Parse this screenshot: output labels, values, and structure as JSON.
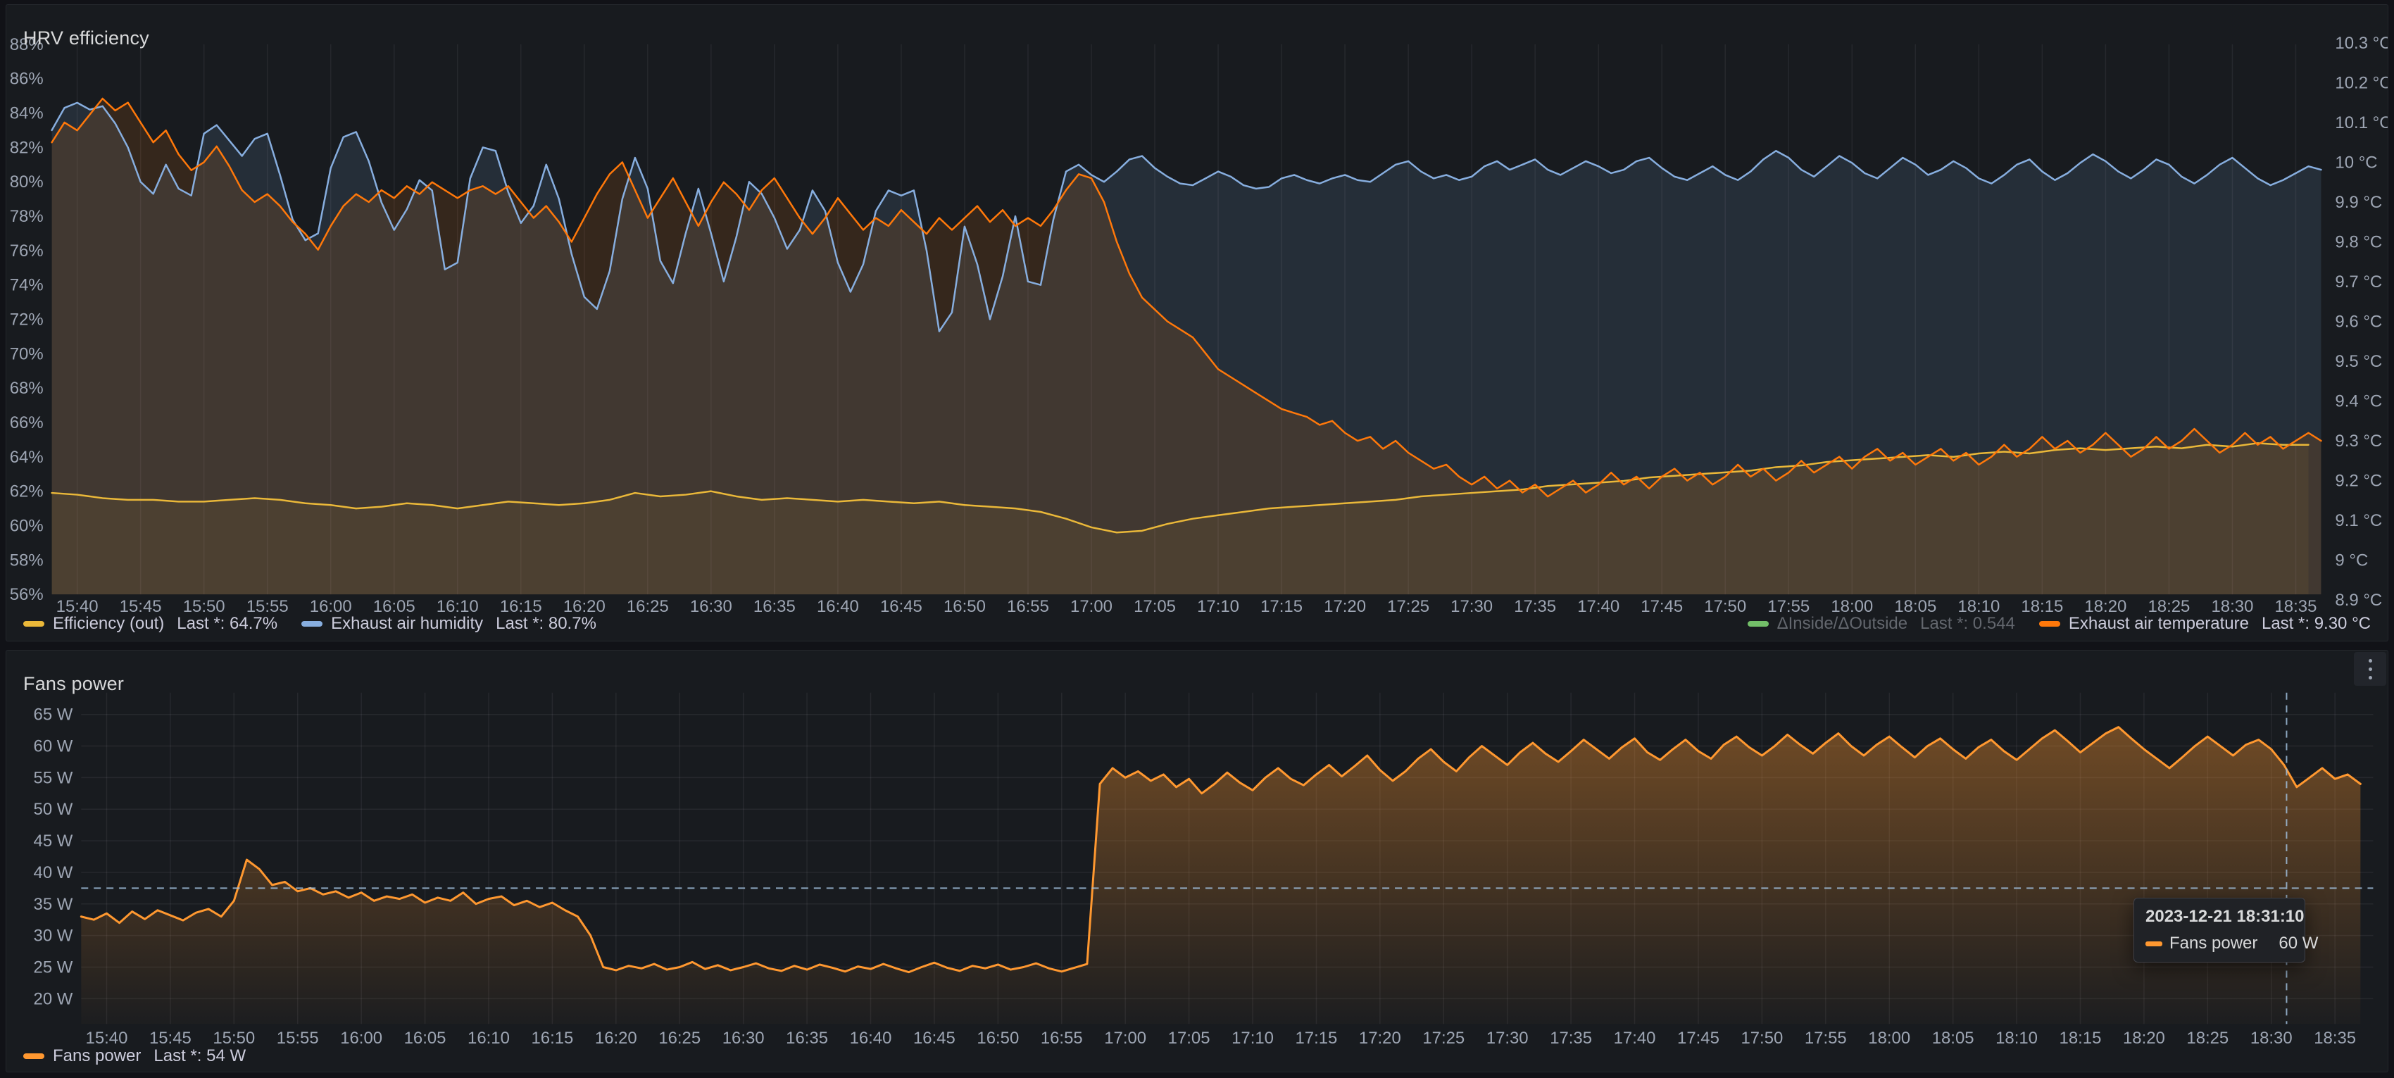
{
  "page": {
    "bg": "#111217",
    "panel_bg": "#181b1f"
  },
  "panels": [
    {
      "title": "HRV efficiency",
      "legend_left": [
        {
          "label": "Efficiency (out)",
          "value": "Last *: 64.7%",
          "color": "#EAB839",
          "dimmed": false
        },
        {
          "label": "Exhaust air humidity",
          "value": "Last *: 80.7%",
          "color": "#87AEDF",
          "dimmed": false
        }
      ],
      "legend_right": [
        {
          "label": "ΔInside/ΔOutside",
          "value": "Last *: 0.544",
          "color": "#73BF69",
          "dimmed": true
        },
        {
          "label": "Exhaust air temperature",
          "value": "Last *: 9.30 °C",
          "color": "#FF780A",
          "dimmed": false
        }
      ]
    },
    {
      "title": "Fans power",
      "legend_left": [
        {
          "label": "Fans power",
          "value": "Last *: 54 W",
          "color": "#FF9830",
          "dimmed": false
        }
      ],
      "tooltip": {
        "timestamp": "2023-12-21 18:31:10",
        "series": "Fans power",
        "value": "60 W",
        "color": "#FF9830"
      }
    }
  ],
  "chart_data": [
    {
      "type": "line",
      "title": "HRV efficiency",
      "x_start": "15:38",
      "x_end": "18:37",
      "x_ticks": [
        "15:40",
        "15:45",
        "15:50",
        "15:55",
        "16:00",
        "16:05",
        "16:10",
        "16:15",
        "16:20",
        "16:25",
        "16:30",
        "16:35",
        "16:40",
        "16:45",
        "16:50",
        "16:55",
        "17:00",
        "17:05",
        "17:10",
        "17:15",
        "17:20",
        "17:25",
        "17:30",
        "17:35",
        "17:40",
        "17:45",
        "17:50",
        "17:55",
        "18:00",
        "18:05",
        "18:10",
        "18:15",
        "18:20",
        "18:25",
        "18:30",
        "18:35"
      ],
      "left_axis": {
        "unit": "%",
        "min": 56,
        "max": 88,
        "tick_step": 2,
        "tick_labels": [
          "88%",
          "86%",
          "84%",
          "82%",
          "80%",
          "78%",
          "76%",
          "74%",
          "72%",
          "70%",
          "68%",
          "66%",
          "64%",
          "62%",
          "60%",
          "58%",
          "56%"
        ]
      },
      "right_axis": {
        "unit": "°C",
        "min": 8.9,
        "max": 10.3,
        "tick_step": 0.1,
        "tick_labels": [
          "10.3 °C",
          "10.2 °C",
          "10.1 °C",
          "10 °C",
          "9.9 °C",
          "9.8 °C",
          "9.7 °C",
          "9.6 °C",
          "9.5 °C",
          "9.4 °C",
          "9.3 °C",
          "9.2 °C",
          "9.1 °C",
          "9 °C",
          "8.9 °C"
        ]
      },
      "grid": {
        "vertical": true,
        "horizontal": false
      },
      "series": [
        {
          "name": "Efficiency (out)",
          "axis": "left",
          "color": "#EAB839",
          "fill_opacity": 0.07,
          "interval_min": 2,
          "last": "64.7%",
          "values": [
            61.9,
            61.8,
            61.6,
            61.5,
            61.5,
            61.4,
            61.4,
            61.5,
            61.6,
            61.5,
            61.3,
            61.2,
            61.0,
            61.1,
            61.3,
            61.2,
            61.0,
            61.2,
            61.4,
            61.3,
            61.2,
            61.3,
            61.5,
            61.9,
            61.7,
            61.8,
            62.0,
            61.7,
            61.5,
            61.6,
            61.5,
            61.4,
            61.5,
            61.4,
            61.3,
            61.4,
            61.2,
            61.1,
            61.0,
            60.8,
            60.4,
            59.9,
            59.6,
            59.7,
            60.1,
            60.4,
            60.6,
            60.8,
            61.0,
            61.1,
            61.2,
            61.3,
            61.4,
            61.5,
            61.7,
            61.8,
            61.9,
            62.0,
            62.1,
            62.3,
            62.4,
            62.5,
            62.6,
            62.8,
            62.9,
            63.0,
            63.1,
            63.2,
            63.4,
            63.5,
            63.7,
            63.8,
            63.9,
            64.0,
            64.1,
            64.0,
            64.2,
            64.3,
            64.2,
            64.4,
            64.5,
            64.4,
            64.5,
            64.6,
            64.5,
            64.7,
            64.6,
            64.8,
            64.7,
            64.7
          ]
        },
        {
          "name": "Exhaust air humidity",
          "axis": "left",
          "color": "#87AEDF",
          "fill_opacity": 0.13,
          "interval_min": 1,
          "last": "80.7%",
          "values": [
            83.0,
            84.3,
            84.6,
            84.2,
            84.4,
            83.4,
            82.0,
            80.0,
            79.3,
            81.0,
            79.6,
            79.2,
            82.8,
            83.3,
            82.4,
            81.5,
            82.5,
            82.8,
            80.4,
            77.8,
            76.6,
            77.0,
            80.8,
            82.6,
            82.9,
            81.2,
            78.8,
            77.2,
            78.4,
            80.1,
            79.5,
            74.9,
            75.3,
            80.2,
            82.0,
            81.8,
            79.4,
            77.6,
            78.6,
            81.0,
            79.0,
            75.8,
            73.3,
            72.6,
            74.8,
            79.0,
            81.4,
            79.6,
            75.4,
            74.1,
            77.0,
            79.6,
            77.0,
            74.2,
            76.8,
            80.0,
            79.3,
            77.9,
            76.1,
            77.2,
            79.5,
            78.3,
            75.3,
            73.6,
            75.2,
            78.3,
            79.5,
            79.2,
            79.5,
            76.0,
            71.3,
            72.4,
            77.4,
            75.2,
            72.0,
            74.5,
            78.0,
            74.2,
            74.0,
            77.8,
            80.6,
            81.0,
            80.4,
            80.0,
            80.6,
            81.3,
            81.5,
            80.8,
            80.3,
            79.9,
            79.8,
            80.2,
            80.6,
            80.3,
            79.8,
            79.6,
            79.7,
            80.2,
            80.4,
            80.1,
            79.9,
            80.2,
            80.4,
            80.1,
            80.0,
            80.5,
            81.0,
            81.2,
            80.6,
            80.2,
            80.4,
            80.1,
            80.3,
            80.9,
            81.2,
            80.7,
            81.0,
            81.3,
            80.7,
            80.4,
            80.8,
            81.2,
            80.9,
            80.5,
            80.7,
            81.2,
            81.4,
            80.8,
            80.3,
            80.1,
            80.5,
            80.9,
            80.4,
            80.1,
            80.6,
            81.3,
            81.8,
            81.4,
            80.7,
            80.3,
            80.9,
            81.5,
            81.1,
            80.5,
            80.2,
            80.8,
            81.4,
            81.0,
            80.4,
            80.7,
            81.2,
            80.8,
            80.2,
            79.9,
            80.4,
            81.0,
            81.3,
            80.6,
            80.1,
            80.5,
            81.1,
            81.6,
            81.2,
            80.6,
            80.2,
            80.7,
            81.3,
            81.0,
            80.3,
            79.9,
            80.4,
            81.0,
            81.4,
            80.8,
            80.2,
            79.8,
            80.1,
            80.5,
            80.9,
            80.7
          ]
        },
        {
          "name": "ΔInside/ΔOutside",
          "axis": "right",
          "color": "#73BF69",
          "hidden": true,
          "last": "0.544",
          "values": []
        },
        {
          "name": "Exhaust air temperature",
          "axis": "right",
          "color": "#FF780A",
          "fill_opacity": 0.13,
          "interval_min": 1,
          "last": "9.30 °C",
          "values": [
            10.05,
            10.1,
            10.08,
            10.12,
            10.16,
            10.13,
            10.15,
            10.1,
            10.05,
            10.08,
            10.02,
            9.98,
            10.0,
            10.04,
            9.99,
            9.93,
            9.9,
            9.92,
            9.89,
            9.85,
            9.82,
            9.78,
            9.84,
            9.89,
            9.92,
            9.9,
            9.93,
            9.91,
            9.94,
            9.92,
            9.95,
            9.93,
            9.91,
            9.93,
            9.94,
            9.92,
            9.94,
            9.9,
            9.86,
            9.89,
            9.85,
            9.8,
            9.86,
            9.92,
            9.97,
            10.0,
            9.93,
            9.86,
            9.91,
            9.96,
            9.9,
            9.84,
            9.9,
            9.95,
            9.92,
            9.88,
            9.93,
            9.96,
            9.91,
            9.86,
            9.82,
            9.86,
            9.91,
            9.87,
            9.83,
            9.86,
            9.84,
            9.88,
            9.85,
            9.82,
            9.86,
            9.83,
            9.86,
            9.89,
            9.85,
            9.88,
            9.84,
            9.86,
            9.84,
            9.88,
            9.93,
            9.97,
            9.96,
            9.9,
            9.8,
            9.72,
            9.66,
            9.63,
            9.6,
            9.58,
            9.56,
            9.52,
            9.48,
            9.46,
            9.44,
            9.42,
            9.4,
            9.38,
            9.37,
            9.36,
            9.34,
            9.35,
            9.32,
            9.3,
            9.31,
            9.28,
            9.3,
            9.27,
            9.25,
            9.23,
            9.24,
            9.21,
            9.19,
            9.21,
            9.18,
            9.2,
            9.17,
            9.19,
            9.16,
            9.18,
            9.2,
            9.17,
            9.19,
            9.22,
            9.19,
            9.21,
            9.18,
            9.21,
            9.23,
            9.2,
            9.22,
            9.19,
            9.21,
            9.24,
            9.21,
            9.23,
            9.2,
            9.22,
            9.25,
            9.22,
            9.24,
            9.26,
            9.23,
            9.26,
            9.28,
            9.25,
            9.27,
            9.24,
            9.26,
            9.28,
            9.25,
            9.27,
            9.24,
            9.26,
            9.29,
            9.26,
            9.28,
            9.31,
            9.28,
            9.3,
            9.27,
            9.29,
            9.32,
            9.29,
            9.26,
            9.28,
            9.31,
            9.28,
            9.3,
            9.33,
            9.3,
            9.27,
            9.29,
            9.32,
            9.29,
            9.31,
            9.28,
            9.3,
            9.32,
            9.3
          ]
        }
      ]
    },
    {
      "type": "line",
      "title": "Fans power",
      "x_start": "15:38",
      "x_end": "18:38",
      "x_ticks": [
        "15:40",
        "15:45",
        "15:50",
        "15:55",
        "16:00",
        "16:05",
        "16:10",
        "16:15",
        "16:20",
        "16:25",
        "16:30",
        "16:35",
        "16:40",
        "16:45",
        "16:50",
        "16:55",
        "17:00",
        "17:05",
        "17:10",
        "17:15",
        "17:20",
        "17:25",
        "17:30",
        "17:35",
        "17:40",
        "17:45",
        "17:50",
        "17:55",
        "18:00",
        "18:05",
        "18:10",
        "18:15",
        "18:20",
        "18:25",
        "18:30",
        "18:35"
      ],
      "left_axis": {
        "unit": "W",
        "min": 20,
        "max": 65,
        "tick_step": 5,
        "tick_labels": [
          "65 W",
          "60 W",
          "55 W",
          "50 W",
          "45 W",
          "40 W",
          "35 W",
          "30 W",
          "25 W",
          "20 W"
        ]
      },
      "grid": {
        "vertical": true,
        "horizontal": true
      },
      "crosshair": {
        "time": "18:31:10",
        "x_offset_min": 173.2,
        "y_value": 37.5
      },
      "series": [
        {
          "name": "Fans power",
          "axis": "left",
          "color": "#FF9830",
          "gradient_fill": [
            0.42,
            0.02
          ],
          "interval_min": 1,
          "last": "54 W",
          "values": [
            33.0,
            32.5,
            33.5,
            32.0,
            33.8,
            32.6,
            34.0,
            33.2,
            32.4,
            33.6,
            34.2,
            33.0,
            35.5,
            42.0,
            40.5,
            38.0,
            38.5,
            37.0,
            37.5,
            36.5,
            37.0,
            36.0,
            36.8,
            35.5,
            36.2,
            35.8,
            36.5,
            35.2,
            36.0,
            35.5,
            36.8,
            35.0,
            35.8,
            36.2,
            34.8,
            35.5,
            34.5,
            35.2,
            34.0,
            33.0,
            30.0,
            25.0,
            24.5,
            25.2,
            24.8,
            25.5,
            24.6,
            25.0,
            25.8,
            24.7,
            25.3,
            24.5,
            25.0,
            25.6,
            24.8,
            24.4,
            25.2,
            24.6,
            25.4,
            24.9,
            24.3,
            25.1,
            24.7,
            25.5,
            24.8,
            24.2,
            25.0,
            25.7,
            24.9,
            24.4,
            25.2,
            24.8,
            25.4,
            24.6,
            25.0,
            25.6,
            24.8,
            24.3,
            24.9,
            25.5,
            54.0,
            56.5,
            55.0,
            56.0,
            54.5,
            55.5,
            53.5,
            54.8,
            52.5,
            54.0,
            55.8,
            54.2,
            53.0,
            55.0,
            56.5,
            54.8,
            53.8,
            55.5,
            57.0,
            55.2,
            56.8,
            58.5,
            56.2,
            54.5,
            56.0,
            58.0,
            59.5,
            57.5,
            56.0,
            58.2,
            60.0,
            58.5,
            57.0,
            59.0,
            60.5,
            58.8,
            57.5,
            59.2,
            61.0,
            59.5,
            58.0,
            59.8,
            61.2,
            59.0,
            57.8,
            59.5,
            61.0,
            59.2,
            58.0,
            60.2,
            61.5,
            59.8,
            58.5,
            60.0,
            61.8,
            60.2,
            58.8,
            60.5,
            62.0,
            60.0,
            58.5,
            60.2,
            61.5,
            59.8,
            58.2,
            60.0,
            61.2,
            59.5,
            58.0,
            59.8,
            61.0,
            59.2,
            57.8,
            59.5,
            61.2,
            62.5,
            60.8,
            59.0,
            60.5,
            62.0,
            63.0,
            61.2,
            59.5,
            58.0,
            56.5,
            58.2,
            60.0,
            61.5,
            60.0,
            58.5,
            60.2,
            61.0,
            59.5,
            57.0,
            53.5,
            55.0,
            56.5,
            54.8,
            55.5,
            54.0
          ]
        }
      ]
    }
  ]
}
